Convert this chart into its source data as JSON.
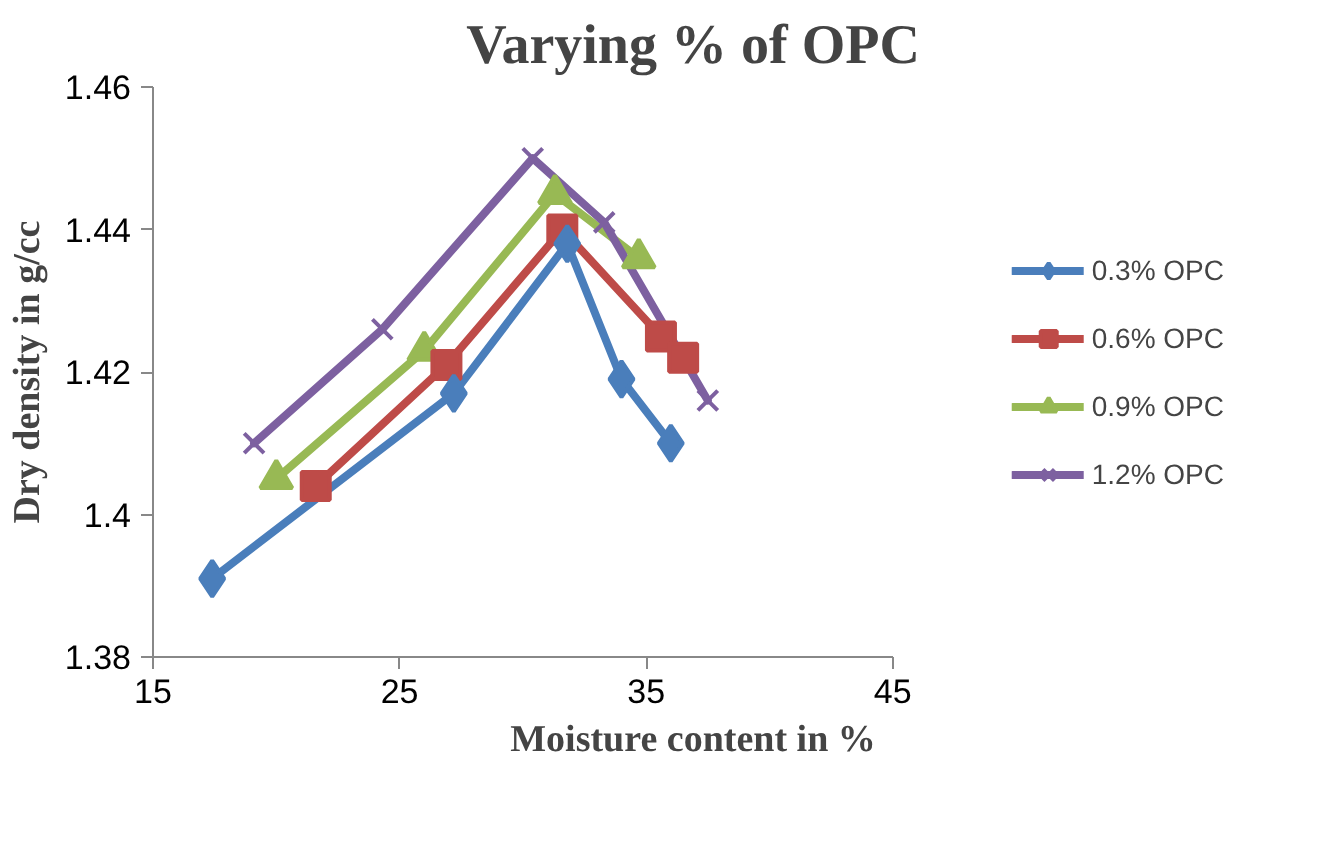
{
  "chart_data": {
    "type": "line",
    "title": "Varying % of OPC",
    "xlabel": "Moisture content in %",
    "ylabel": "Dry density in g/cc",
    "xlim": [
      15,
      45
    ],
    "xticks": [
      15,
      25,
      35,
      45
    ],
    "ylim": [
      1.38,
      1.46
    ],
    "yticks": [
      {
        "value": 1.38,
        "label": "1.38"
      },
      {
        "value": 1.4,
        "label": "1.4"
      },
      {
        "value": 1.42,
        "label": "1.42"
      },
      {
        "value": 1.44,
        "label": "1.44"
      },
      {
        "value": 1.46,
        "label": "1.46"
      }
    ],
    "grid": false,
    "legend": "right",
    "series": [
      {
        "name": "0.3% OPC",
        "color": "#4a7ebb",
        "marker": "diamond",
        "x": [
          17.4,
          27.2,
          31.8,
          34.0,
          36.0
        ],
        "values": [
          1.391,
          1.417,
          1.438,
          1.419,
          1.41
        ]
      },
      {
        "name": "0.6% OPC",
        "color": "#be4b48",
        "marker": "square",
        "x": [
          21.6,
          26.9,
          31.6,
          35.6,
          36.5
        ],
        "values": [
          1.404,
          1.421,
          1.44,
          1.425,
          1.422
        ]
      },
      {
        "name": "0.9% OPC",
        "color": "#98b954",
        "marker": "triangle",
        "x": [
          20.0,
          26.0,
          31.3,
          34.7
        ],
        "values": [
          1.405,
          1.423,
          1.445,
          1.436
        ]
      },
      {
        "name": "1.2% OPC",
        "color": "#7d60a0",
        "marker": "cross",
        "x": [
          19.1,
          24.3,
          30.4,
          33.3,
          37.5
        ],
        "values": [
          1.41,
          1.426,
          1.45,
          1.441,
          1.416
        ]
      }
    ]
  }
}
